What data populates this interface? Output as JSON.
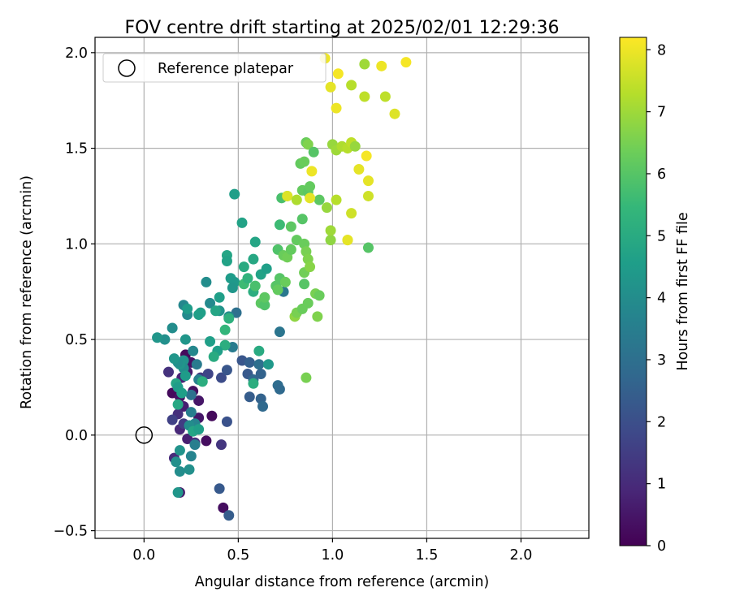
{
  "chart_data": {
    "type": "scatter",
    "title": "FOV centre drift starting at 2025/02/01 12:29:36",
    "xlabel": "Angular distance from reference (arcmin)",
    "ylabel": "Rotation from reference (arcmin)",
    "xlim": [
      -0.26,
      2.36
    ],
    "ylim": [
      -0.54,
      2.08
    ],
    "xticks": [
      0.0,
      0.5,
      1.0,
      1.5,
      2.0
    ],
    "xtick_labels": [
      "0.0",
      "0.5",
      "1.0",
      "1.5",
      "2.0"
    ],
    "yticks": [
      -0.5,
      0.0,
      0.5,
      1.0,
      1.5,
      2.0
    ],
    "ytick_labels": [
      "−0.5",
      "0.0",
      "0.5",
      "1.0",
      "1.5",
      "2.0"
    ],
    "grid": true,
    "legend": {
      "placement": "top-left",
      "entries": [
        {
          "label": "Reference platepar",
          "marker": "open-circle"
        }
      ]
    },
    "reference_point": [
      0.0,
      0.0
    ],
    "colorbar": {
      "label": "Hours from first FF file",
      "range": [
        0,
        8.2
      ],
      "ticks": [
        0,
        1,
        2,
        3,
        4,
        5,
        6,
        7,
        8
      ],
      "colormap": "viridis"
    },
    "colormap_stops": [
      "#440154",
      "#482878",
      "#3e4989",
      "#31688e",
      "#26828e",
      "#1f9e89",
      "#35b779",
      "#6ece58",
      "#b5de2b",
      "#fde725"
    ],
    "points": [
      [
        0.22,
        0.42,
        0.2
      ],
      [
        0.25,
        0.38,
        0.4
      ],
      [
        0.23,
        0.33,
        0.6
      ],
      [
        0.2,
        0.3,
        0.8
      ],
      [
        0.26,
        0.23,
        0.3
      ],
      [
        0.29,
        0.18,
        0.5
      ],
      [
        0.15,
        0.22,
        0.2
      ],
      [
        0.19,
        0.2,
        0.4
      ],
      [
        0.21,
        0.15,
        0.7
      ],
      [
        0.36,
        0.1,
        0.2
      ],
      [
        0.29,
        0.09,
        0.5
      ],
      [
        0.27,
        0.03,
        0.4
      ],
      [
        0.19,
        0.03,
        0.9
      ],
      [
        0.33,
        -0.03,
        0.3
      ],
      [
        0.23,
        -0.02,
        0.7
      ],
      [
        0.27,
        -0.04,
        1.1
      ],
      [
        0.16,
        -0.12,
        1.0
      ],
      [
        0.19,
        -0.3,
        0.6
      ],
      [
        0.42,
        -0.38,
        0.3
      ],
      [
        0.41,
        -0.05,
        1.3
      ],
      [
        0.13,
        0.33,
        1.2
      ],
      [
        0.18,
        0.11,
        1.1
      ],
      [
        0.3,
        0.3,
        1.4
      ],
      [
        0.34,
        0.32,
        1.7
      ],
      [
        0.21,
        0.06,
        1.5
      ],
      [
        0.15,
        0.08,
        1.6
      ],
      [
        0.44,
        0.07,
        2.1
      ],
      [
        0.45,
        -0.42,
        2.4
      ],
      [
        0.4,
        -0.28,
        2.3
      ],
      [
        0.41,
        0.3,
        1.9
      ],
      [
        0.44,
        0.34,
        2.2
      ],
      [
        0.52,
        0.39,
        2.2
      ],
      [
        0.55,
        0.32,
        2.3
      ],
      [
        0.56,
        0.2,
        2.4
      ],
      [
        0.56,
        0.38,
        2.5
      ],
      [
        0.58,
        0.29,
        2.7
      ],
      [
        0.62,
        0.32,
        2.6
      ],
      [
        0.62,
        0.19,
        2.6
      ],
      [
        0.63,
        0.15,
        2.8
      ],
      [
        0.61,
        0.37,
        3.0
      ],
      [
        0.71,
        0.26,
        2.9
      ],
      [
        0.72,
        0.24,
        2.8
      ],
      [
        0.72,
        0.54,
        3.2
      ],
      [
        0.74,
        0.75,
        3.3
      ],
      [
        0.49,
        0.64,
        3.0
      ],
      [
        0.47,
        0.46,
        3.4
      ],
      [
        0.25,
        0.21,
        3.1
      ],
      [
        0.28,
        0.37,
        3.4
      ],
      [
        0.25,
        0.12,
        3.5
      ],
      [
        0.27,
        0.06,
        3.7
      ],
      [
        0.29,
        0.29,
        3.6
      ],
      [
        0.25,
        -0.11,
        3.7
      ],
      [
        0.27,
        -0.05,
        3.5
      ],
      [
        0.24,
        -0.18,
        4.1
      ],
      [
        0.19,
        -0.19,
        4.0
      ],
      [
        0.18,
        -0.3,
        4.3
      ],
      [
        0.19,
        -0.08,
        4.2
      ],
      [
        0.17,
        -0.14,
        4.1
      ],
      [
        0.24,
        0.05,
        4.0
      ],
      [
        0.26,
        0.44,
        3.8
      ],
      [
        0.21,
        0.68,
        3.8
      ],
      [
        0.23,
        0.63,
        3.9
      ],
      [
        0.33,
        0.8,
        4.0
      ],
      [
        0.35,
        0.69,
        3.9
      ],
      [
        0.4,
        0.65,
        4.2
      ],
      [
        0.45,
        0.62,
        4.0
      ],
      [
        0.46,
        0.82,
        4.5
      ],
      [
        0.48,
        0.8,
        4.4
      ],
      [
        0.47,
        0.77,
        4.3
      ],
      [
        0.44,
        0.94,
        4.8
      ],
      [
        0.44,
        0.91,
        4.7
      ],
      [
        0.52,
        1.11,
        4.7
      ],
      [
        0.48,
        1.26,
        4.6
      ],
      [
        0.53,
        0.88,
        5.0
      ],
      [
        0.58,
        0.92,
        4.9
      ],
      [
        0.59,
        1.01,
        4.8
      ],
      [
        0.62,
        0.84,
        4.7
      ],
      [
        0.65,
        0.87,
        4.6
      ],
      [
        0.58,
        0.75,
        5.1
      ],
      [
        0.66,
        0.37,
        4.4
      ],
      [
        0.61,
        0.44,
        5.0
      ],
      [
        0.58,
        0.27,
        5.1
      ],
      [
        0.43,
        0.47,
        5.1
      ],
      [
        0.4,
        0.72,
        4.6
      ],
      [
        0.43,
        0.55,
        5.4
      ],
      [
        0.35,
        0.49,
        4.6
      ],
      [
        0.39,
        0.44,
        4.6
      ],
      [
        0.37,
        0.41,
        5.0
      ],
      [
        0.31,
        0.28,
        5.1
      ],
      [
        0.22,
        0.5,
        4.3
      ],
      [
        0.21,
        0.39,
        4.2
      ],
      [
        0.21,
        0.35,
        4.0
      ],
      [
        0.19,
        0.37,
        4.3
      ],
      [
        0.18,
        0.38,
        4.1
      ],
      [
        0.16,
        0.4,
        4.3
      ],
      [
        0.11,
        0.5,
        4.1
      ],
      [
        0.07,
        0.51,
        4.3
      ],
      [
        0.15,
        0.56,
        4.0
      ],
      [
        0.17,
        0.27,
        4.8
      ],
      [
        0.18,
        0.25,
        4.5
      ],
      [
        0.22,
        0.31,
        4.5
      ],
      [
        0.2,
        0.22,
        4.6
      ],
      [
        0.18,
        0.16,
        4.9
      ],
      [
        0.26,
        0.02,
        4.8
      ],
      [
        0.29,
        0.03,
        4.6
      ],
      [
        0.23,
        0.66,
        4.5
      ],
      [
        0.29,
        0.63,
        4.6
      ],
      [
        0.3,
        0.64,
        4.6
      ],
      [
        0.38,
        0.65,
        4.8
      ],
      [
        0.45,
        0.61,
        5.2
      ],
      [
        0.53,
        0.79,
        5.6
      ],
      [
        0.55,
        0.82,
        5.3
      ],
      [
        0.59,
        0.78,
        5.8
      ],
      [
        0.62,
        0.69,
        6.1
      ],
      [
        0.64,
        0.68,
        5.9
      ],
      [
        0.64,
        0.72,
        6.1
      ],
      [
        0.7,
        0.78,
        6.0
      ],
      [
        0.71,
        0.76,
        6.2
      ],
      [
        0.72,
        0.82,
        6.0
      ],
      [
        0.75,
        0.8,
        6.3
      ],
      [
        0.71,
        0.97,
        5.9
      ],
      [
        0.74,
        0.94,
        6.3
      ],
      [
        0.76,
        0.93,
        6.4
      ],
      [
        0.78,
        0.97,
        6.2
      ],
      [
        0.78,
        1.09,
        6.1
      ],
      [
        0.81,
        1.02,
        6.2
      ],
      [
        0.72,
        1.1,
        5.6
      ],
      [
        0.73,
        1.24,
        5.8
      ],
      [
        0.76,
        1.25,
        6.1
      ],
      [
        0.84,
        1.13,
        6.0
      ],
      [
        0.85,
        1.0,
        6.3
      ],
      [
        0.86,
        0.96,
        6.5
      ],
      [
        0.85,
        0.85,
        6.4
      ],
      [
        0.85,
        0.79,
        6.0
      ],
      [
        0.87,
        0.92,
        6.6
      ],
      [
        0.88,
        0.88,
        6.7
      ],
      [
        0.86,
        0.3,
        6.5
      ],
      [
        0.8,
        0.62,
        6.8
      ],
      [
        0.81,
        0.64,
        6.5
      ],
      [
        0.84,
        0.66,
        6.3
      ],
      [
        0.87,
        0.69,
        6.3
      ],
      [
        0.91,
        0.74,
        6.5
      ],
      [
        0.93,
        0.73,
        6.3
      ],
      [
        0.92,
        0.62,
        6.6
      ],
      [
        0.83,
        1.42,
        6.2
      ],
      [
        0.85,
        1.43,
        6.3
      ],
      [
        0.86,
        1.53,
        6.3
      ],
      [
        0.87,
        1.52,
        6.6
      ],
      [
        0.84,
        1.28,
        6.2
      ],
      [
        0.87,
        1.27,
        6.1
      ],
      [
        0.88,
        1.3,
        6.2
      ],
      [
        0.9,
        1.48,
        6.0
      ],
      [
        0.93,
        1.23,
        6.1
      ],
      [
        0.97,
        1.19,
        6.9
      ],
      [
        0.99,
        1.02,
        6.8
      ],
      [
        0.99,
        1.07,
        7.0
      ],
      [
        1.0,
        1.52,
        6.9
      ],
      [
        1.02,
        1.49,
        7.0
      ],
      [
        1.05,
        1.51,
        7.2
      ],
      [
        1.08,
        1.5,
        7.3
      ],
      [
        1.1,
        1.53,
        7.4
      ],
      [
        1.12,
        1.51,
        6.9
      ],
      [
        1.19,
        0.98,
        6.0
      ],
      [
        1.02,
        1.23,
        7.3
      ],
      [
        0.76,
        1.25,
        7.8
      ],
      [
        0.81,
        1.23,
        7.2
      ],
      [
        0.88,
        1.24,
        7.9
      ],
      [
        0.89,
        1.38,
        8.0
      ],
      [
        1.08,
        1.02,
        7.8
      ],
      [
        1.1,
        1.16,
        7.6
      ],
      [
        1.14,
        1.39,
        7.9
      ],
      [
        1.18,
        1.46,
        8.1
      ],
      [
        1.19,
        1.33,
        7.9
      ],
      [
        1.19,
        1.25,
        7.6
      ],
      [
        0.99,
        1.82,
        7.9
      ],
      [
        1.02,
        1.71,
        8.0
      ],
      [
        1.03,
        1.89,
        8.1
      ],
      [
        1.1,
        1.83,
        7.3
      ],
      [
        0.96,
        1.97,
        8.0
      ],
      [
        1.17,
        1.77,
        7.4
      ],
      [
        1.17,
        1.94,
        7.0
      ],
      [
        1.26,
        1.93,
        8.0
      ],
      [
        1.28,
        1.77,
        7.4
      ],
      [
        1.33,
        1.68,
        7.8
      ],
      [
        1.39,
        1.95,
        8.1
      ],
      [
        1.08,
        1.02,
        7.9
      ]
    ]
  }
}
